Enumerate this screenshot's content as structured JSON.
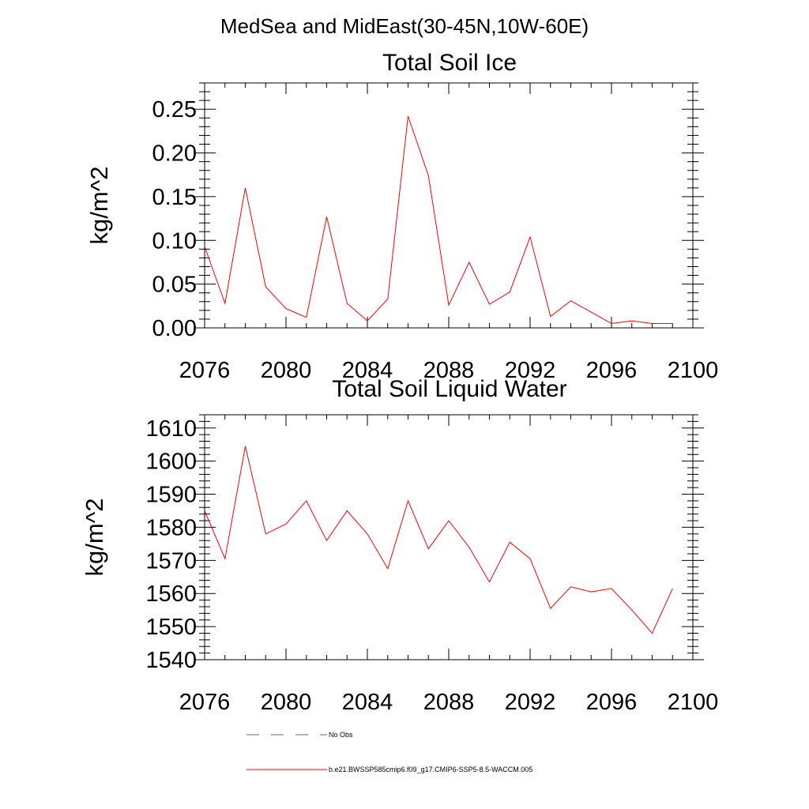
{
  "figure": {
    "suptitle": "MedSea and MidEast(30-45N,10W-60E)"
  },
  "legend": [
    {
      "label": "No Obs",
      "color": "#5a6a99",
      "style": "dashed"
    },
    {
      "label": "b.e21.BWSSP585cmip6.f09_g17.CMIP6-SSP5-8.5-WACCM.005",
      "color": "#ff0000",
      "style": "solid"
    }
  ],
  "chart_data": [
    {
      "type": "line",
      "title": "Total Soil Ice",
      "xlabel": "",
      "ylabel": "kg/m^2",
      "xlim": [
        2076,
        2100
      ],
      "ylim": [
        0.0,
        0.28
      ],
      "x_ticks": [
        2076,
        2080,
        2084,
        2088,
        2092,
        2096,
        2100
      ],
      "y_ticks": [
        0.0,
        0.05,
        0.1,
        0.15,
        0.2,
        0.25
      ],
      "y_tick_labels": [
        "0.00",
        "0.05",
        "0.10",
        "0.15",
        "0.20",
        "0.25"
      ],
      "grid": false,
      "series": [
        {
          "name": "b.e21.BWSSP585cmip6.f09_g17.CMIP6-SSP5-8.5-WACCM.005",
          "color": "#ff0000",
          "x": [
            2076,
            2077,
            2078,
            2079,
            2080,
            2081,
            2082,
            2083,
            2084,
            2085,
            2086,
            2087,
            2088,
            2089,
            2090,
            2091,
            2092,
            2093,
            2094,
            2095,
            2096,
            2097,
            2098,
            2099
          ],
          "y": [
            0.093,
            0.028,
            0.16,
            0.047,
            0.022,
            0.012,
            0.127,
            0.028,
            0.008,
            0.033,
            0.242,
            0.174,
            0.026,
            0.075,
            0.027,
            0.041,
            0.104,
            0.013,
            0.031,
            0.018,
            0.005,
            0.008,
            0.005,
            0.005
          ]
        }
      ]
    },
    {
      "type": "line",
      "title": "Total Soil Liquid Water",
      "xlabel": "",
      "ylabel": "kg/m^2",
      "xlim": [
        2076,
        2100
      ],
      "ylim": [
        1540,
        1614
      ],
      "x_ticks": [
        2076,
        2080,
        2084,
        2088,
        2092,
        2096,
        2100
      ],
      "y_ticks": [
        1540,
        1550,
        1560,
        1570,
        1580,
        1590,
        1600,
        1610
      ],
      "y_tick_labels": [
        "1540",
        "1550",
        "1560",
        "1570",
        "1580",
        "1590",
        "1600",
        "1610"
      ],
      "grid": false,
      "series": [
        {
          "name": "b.e21.BWSSP585cmip6.f09_g17.CMIP6-SSP5-8.5-WACCM.005",
          "color": "#ff0000",
          "x": [
            2076,
            2077,
            2078,
            2079,
            2080,
            2081,
            2082,
            2083,
            2084,
            2085,
            2086,
            2087,
            2088,
            2089,
            2090,
            2091,
            2092,
            2093,
            2094,
            2095,
            2096,
            2097,
            2098,
            2099
          ],
          "y": [
            1585,
            1570.5,
            1604.5,
            1578,
            1581,
            1588,
            1576,
            1585,
            1578,
            1567.5,
            1588,
            1573.5,
            1582,
            1574,
            1563.5,
            1575.5,
            1570.5,
            1555.5,
            1562,
            1560.5,
            1561.5,
            1555,
            1548,
            1561.5
          ]
        }
      ]
    }
  ]
}
